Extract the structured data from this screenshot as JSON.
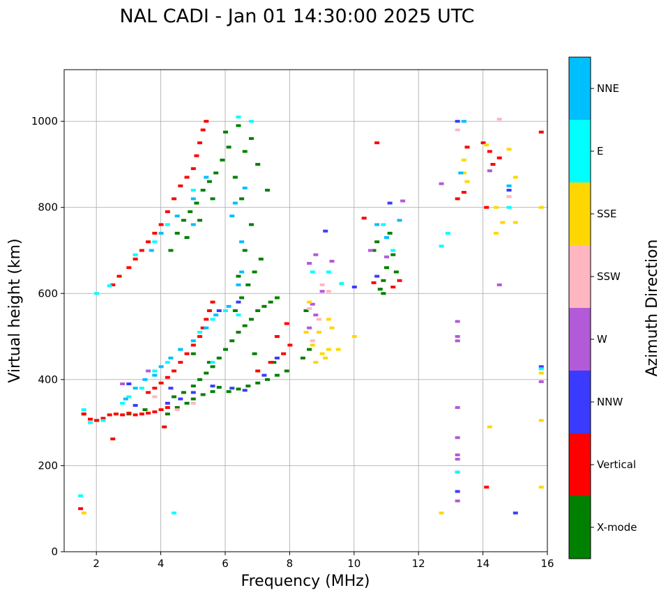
{
  "chart_data": {
    "type": "scatter",
    "title": "NAL CADI - Jan 01 14:30:00 2025 UTC",
    "xlabel": "Frequency (MHz)",
    "ylabel": "Virtual height (km)",
    "xlim": [
      1,
      16
    ],
    "ylim": [
      0,
      1120
    ],
    "xticks": [
      2,
      4,
      6,
      8,
      10,
      12,
      14,
      16
    ],
    "yticks": [
      0,
      200,
      400,
      600,
      800,
      1000
    ],
    "grid": true,
    "colorbar": {
      "label": "Azimuth Direction",
      "categories": [
        {
          "name": "X-mode",
          "color": "#008000"
        },
        {
          "name": "Vertical",
          "color": "#ff0000"
        },
        {
          "name": "NNW",
          "color": "#3b3bff"
        },
        {
          "name": "W",
          "color": "#b35ad8"
        },
        {
          "name": "SSW",
          "color": "#ffb6c1"
        },
        {
          "name": "SSE",
          "color": "#ffd700"
        },
        {
          "name": "E",
          "color": "#00ffff"
        },
        {
          "name": "NNE",
          "color": "#00bfff"
        }
      ]
    },
    "series": [
      {
        "name": "X-mode",
        "points": [
          [
            4.2,
            320
          ],
          [
            4.5,
            335
          ],
          [
            4.8,
            345
          ],
          [
            5.0,
            355
          ],
          [
            5.3,
            365
          ],
          [
            5.6,
            372
          ],
          [
            5.8,
            382
          ],
          [
            6.1,
            372
          ],
          [
            6.4,
            378
          ],
          [
            6.7,
            385
          ],
          [
            7.0,
            392
          ],
          [
            7.3,
            400
          ],
          [
            7.6,
            410
          ],
          [
            7.9,
            420
          ],
          [
            4.4,
            360
          ],
          [
            4.7,
            370
          ],
          [
            5.0,
            385
          ],
          [
            5.2,
            400
          ],
          [
            5.4,
            415
          ],
          [
            5.6,
            430
          ],
          [
            5.8,
            450
          ],
          [
            6.0,
            470
          ],
          [
            6.2,
            490
          ],
          [
            6.4,
            510
          ],
          [
            6.6,
            525
          ],
          [
            6.8,
            540
          ],
          [
            7.0,
            560
          ],
          [
            7.2,
            570
          ],
          [
            7.4,
            580
          ],
          [
            7.6,
            590
          ],
          [
            6.3,
            560
          ],
          [
            6.5,
            590
          ],
          [
            6.7,
            620
          ],
          [
            6.9,
            650
          ],
          [
            7.1,
            680
          ],
          [
            6.4,
            640
          ],
          [
            6.6,
            700
          ],
          [
            6.8,
            760
          ],
          [
            6.5,
            820
          ],
          [
            6.3,
            870
          ],
          [
            6.6,
            930
          ],
          [
            6.8,
            960
          ],
          [
            6.4,
            990
          ],
          [
            7.0,
            900
          ],
          [
            7.3,
            840
          ],
          [
            4.3,
            700
          ],
          [
            4.5,
            740
          ],
          [
            4.7,
            770
          ],
          [
            4.9,
            790
          ],
          [
            5.1,
            810
          ],
          [
            5.3,
            840
          ],
          [
            5.5,
            860
          ],
          [
            5.7,
            880
          ],
          [
            5.9,
            910
          ],
          [
            6.1,
            940
          ],
          [
            6.0,
            975
          ],
          [
            5.6,
            820
          ],
          [
            5.2,
            770
          ],
          [
            4.8,
            730
          ],
          [
            10.8,
            610
          ],
          [
            10.9,
            630
          ],
          [
            11.0,
            660
          ],
          [
            11.2,
            690
          ],
          [
            10.7,
            720
          ],
          [
            11.1,
            740
          ],
          [
            10.6,
            700
          ],
          [
            11.3,
            650
          ],
          [
            10.9,
            600
          ],
          [
            8.4,
            450
          ],
          [
            8.6,
            470
          ],
          [
            8.5,
            560
          ],
          [
            5.0,
            460
          ],
          [
            5.5,
            440
          ],
          [
            6.9,
            460
          ],
          [
            7.5,
            440
          ],
          [
            1.6,
            320
          ],
          [
            2.0,
            305
          ],
          [
            3.0,
            320
          ],
          [
            3.5,
            330
          ]
        ]
      },
      {
        "name": "Vertical",
        "points": [
          [
            1.6,
            320
          ],
          [
            1.8,
            308
          ],
          [
            2.0,
            305
          ],
          [
            2.2,
            310
          ],
          [
            2.4,
            318
          ],
          [
            2.6,
            320
          ],
          [
            2.8,
            318
          ],
          [
            3.0,
            322
          ],
          [
            3.2,
            318
          ],
          [
            3.4,
            320
          ],
          [
            3.6,
            322
          ],
          [
            3.8,
            325
          ],
          [
            4.0,
            330
          ],
          [
            4.2,
            335
          ],
          [
            2.5,
            262
          ],
          [
            4.1,
            290
          ],
          [
            1.5,
            100
          ],
          [
            3.6,
            370
          ],
          [
            3.8,
            380
          ],
          [
            4.0,
            392
          ],
          [
            4.2,
            405
          ],
          [
            4.4,
            420
          ],
          [
            4.6,
            440
          ],
          [
            4.8,
            460
          ],
          [
            5.0,
            480
          ],
          [
            5.2,
            500
          ],
          [
            5.3,
            520
          ],
          [
            5.4,
            540
          ],
          [
            5.5,
            560
          ],
          [
            5.6,
            580
          ],
          [
            3.0,
            660
          ],
          [
            3.2,
            680
          ],
          [
            3.4,
            700
          ],
          [
            3.6,
            720
          ],
          [
            3.8,
            740
          ],
          [
            4.0,
            760
          ],
          [
            4.2,
            790
          ],
          [
            4.4,
            820
          ],
          [
            4.6,
            850
          ],
          [
            4.8,
            870
          ],
          [
            5.0,
            890
          ],
          [
            5.1,
            920
          ],
          [
            5.2,
            950
          ],
          [
            5.3,
            980
          ],
          [
            5.4,
            1000
          ],
          [
            2.5,
            620
          ],
          [
            2.7,
            640
          ],
          [
            7.0,
            420
          ],
          [
            7.4,
            440
          ],
          [
            7.8,
            460
          ],
          [
            8.0,
            480
          ],
          [
            7.6,
            500
          ],
          [
            7.9,
            530
          ],
          [
            10.3,
            775
          ],
          [
            10.6,
            625
          ],
          [
            10.7,
            950
          ],
          [
            11.2,
            615
          ],
          [
            11.4,
            630
          ],
          [
            13.2,
            820
          ],
          [
            13.4,
            835
          ],
          [
            13.5,
            940
          ],
          [
            14.0,
            950
          ],
          [
            14.2,
            930
          ],
          [
            14.5,
            915
          ],
          [
            14.1,
            800
          ],
          [
            14.3,
            900
          ],
          [
            15.8,
            975
          ],
          [
            14.1,
            150
          ]
        ]
      },
      {
        "name": "NNW",
        "points": [
          [
            4.2,
            345
          ],
          [
            4.6,
            355
          ],
          [
            5.0,
            370
          ],
          [
            5.6,
            385
          ],
          [
            6.2,
            380
          ],
          [
            6.6,
            375
          ],
          [
            7.2,
            410
          ],
          [
            7.6,
            450
          ],
          [
            5.8,
            560
          ],
          [
            6.4,
            580
          ],
          [
            10.0,
            615
          ],
          [
            10.7,
            640
          ],
          [
            11.1,
            810
          ],
          [
            9.1,
            745
          ],
          [
            13.2,
            1000
          ],
          [
            14.8,
            840
          ],
          [
            15.8,
            430
          ],
          [
            15.0,
            90
          ],
          [
            13.2,
            140
          ],
          [
            3.0,
            390
          ],
          [
            4.3,
            380
          ],
          [
            3.2,
            340
          ]
        ]
      },
      {
        "name": "W",
        "points": [
          [
            8.6,
            520
          ],
          [
            8.8,
            550
          ],
          [
            8.7,
            575
          ],
          [
            9.0,
            605
          ],
          [
            9.3,
            675
          ],
          [
            8.8,
            690
          ],
          [
            8.6,
            670
          ],
          [
            10.5,
            700
          ],
          [
            11.0,
            685
          ],
          [
            11.5,
            815
          ],
          [
            13.2,
            535
          ],
          [
            13.2,
            500
          ],
          [
            13.2,
            490
          ],
          [
            13.2,
            335
          ],
          [
            13.2,
            265
          ],
          [
            13.2,
            225
          ],
          [
            13.2,
            215
          ],
          [
            13.2,
            185
          ],
          [
            13.2,
            118
          ],
          [
            12.7,
            855
          ],
          [
            14.5,
            620
          ],
          [
            14.2,
            885
          ],
          [
            15.8,
            395
          ],
          [
            2.8,
            390
          ],
          [
            3.6,
            420
          ]
        ]
      },
      {
        "name": "SSW",
        "points": [
          [
            8.7,
            490
          ],
          [
            8.9,
            540
          ],
          [
            9.0,
            620
          ],
          [
            9.2,
            605
          ],
          [
            13.2,
            980
          ],
          [
            14.5,
            1005
          ],
          [
            14.8,
            825
          ],
          [
            4.5,
            330
          ],
          [
            5.0,
            345
          ],
          [
            3.8,
            360
          ],
          [
            8.6,
            565
          ]
        ]
      },
      {
        "name": "SSE",
        "points": [
          [
            8.5,
            510
          ],
          [
            8.7,
            480
          ],
          [
            9.0,
            460
          ],
          [
            9.2,
            470
          ],
          [
            9.3,
            520
          ],
          [
            9.5,
            470
          ],
          [
            8.8,
            440
          ],
          [
            10.0,
            500
          ],
          [
            9.2,
            540
          ],
          [
            8.6,
            580
          ],
          [
            9.1,
            450
          ],
          [
            8.9,
            510
          ],
          [
            13.4,
            910
          ],
          [
            13.4,
            880
          ],
          [
            13.5,
            860
          ],
          [
            14.4,
            740
          ],
          [
            14.6,
            765
          ],
          [
            15.0,
            765
          ],
          [
            14.8,
            935
          ],
          [
            15.0,
            870
          ],
          [
            14.1,
            945
          ],
          [
            14.4,
            800
          ],
          [
            14.2,
            290
          ],
          [
            15.8,
            800
          ],
          [
            15.8,
            305
          ],
          [
            15.8,
            150
          ],
          [
            12.7,
            90
          ],
          [
            15.8,
            415
          ],
          [
            1.6,
            90
          ]
        ]
      },
      {
        "name": "E",
        "points": [
          [
            1.6,
            330
          ],
          [
            1.8,
            300
          ],
          [
            2.2,
            305
          ],
          [
            2.8,
            345
          ],
          [
            3.0,
            360
          ],
          [
            3.4,
            380
          ],
          [
            3.8,
            420
          ],
          [
            4.2,
            440
          ],
          [
            4.6,
            470
          ],
          [
            5.2,
            510
          ],
          [
            5.6,
            540
          ],
          [
            6.0,
            560
          ],
          [
            6.4,
            550
          ],
          [
            2.4,
            618
          ],
          [
            2.0,
            600
          ],
          [
            1.5,
            130
          ],
          [
            3.2,
            690
          ],
          [
            3.8,
            720
          ],
          [
            4.2,
            760
          ],
          [
            5.0,
            840
          ],
          [
            6.4,
            1010
          ],
          [
            6.8,
            1000
          ],
          [
            8.7,
            650
          ],
          [
            9.2,
            650
          ],
          [
            9.6,
            623
          ],
          [
            10.9,
            760
          ],
          [
            11.2,
            700
          ],
          [
            12.7,
            710
          ],
          [
            12.9,
            740
          ],
          [
            13.2,
            185
          ],
          [
            14.8,
            800
          ],
          [
            15.8,
            425
          ],
          [
            4.4,
            90
          ],
          [
            5.6,
            440
          ]
        ]
      },
      {
        "name": "NNE",
        "points": [
          [
            3.5,
            400
          ],
          [
            3.8,
            410
          ],
          [
            4.0,
            430
          ],
          [
            4.3,
            450
          ],
          [
            4.6,
            470
          ],
          [
            5.0,
            490
          ],
          [
            5.4,
            520
          ],
          [
            5.7,
            550
          ],
          [
            6.1,
            570
          ],
          [
            6.5,
            650
          ],
          [
            6.4,
            620
          ],
          [
            6.5,
            720
          ],
          [
            6.3,
            810
          ],
          [
            6.6,
            845
          ],
          [
            6.2,
            780
          ],
          [
            3.7,
            700
          ],
          [
            4.0,
            740
          ],
          [
            4.5,
            780
          ],
          [
            5.0,
            820
          ],
          [
            5.4,
            870
          ],
          [
            5.0,
            760
          ],
          [
            10.7,
            760
          ],
          [
            11.0,
            730
          ],
          [
            11.4,
            770
          ],
          [
            13.4,
            1000
          ],
          [
            13.3,
            880
          ],
          [
            14.8,
            850
          ],
          [
            3.2,
            380
          ],
          [
            2.9,
            355
          ]
        ]
      }
    ]
  }
}
